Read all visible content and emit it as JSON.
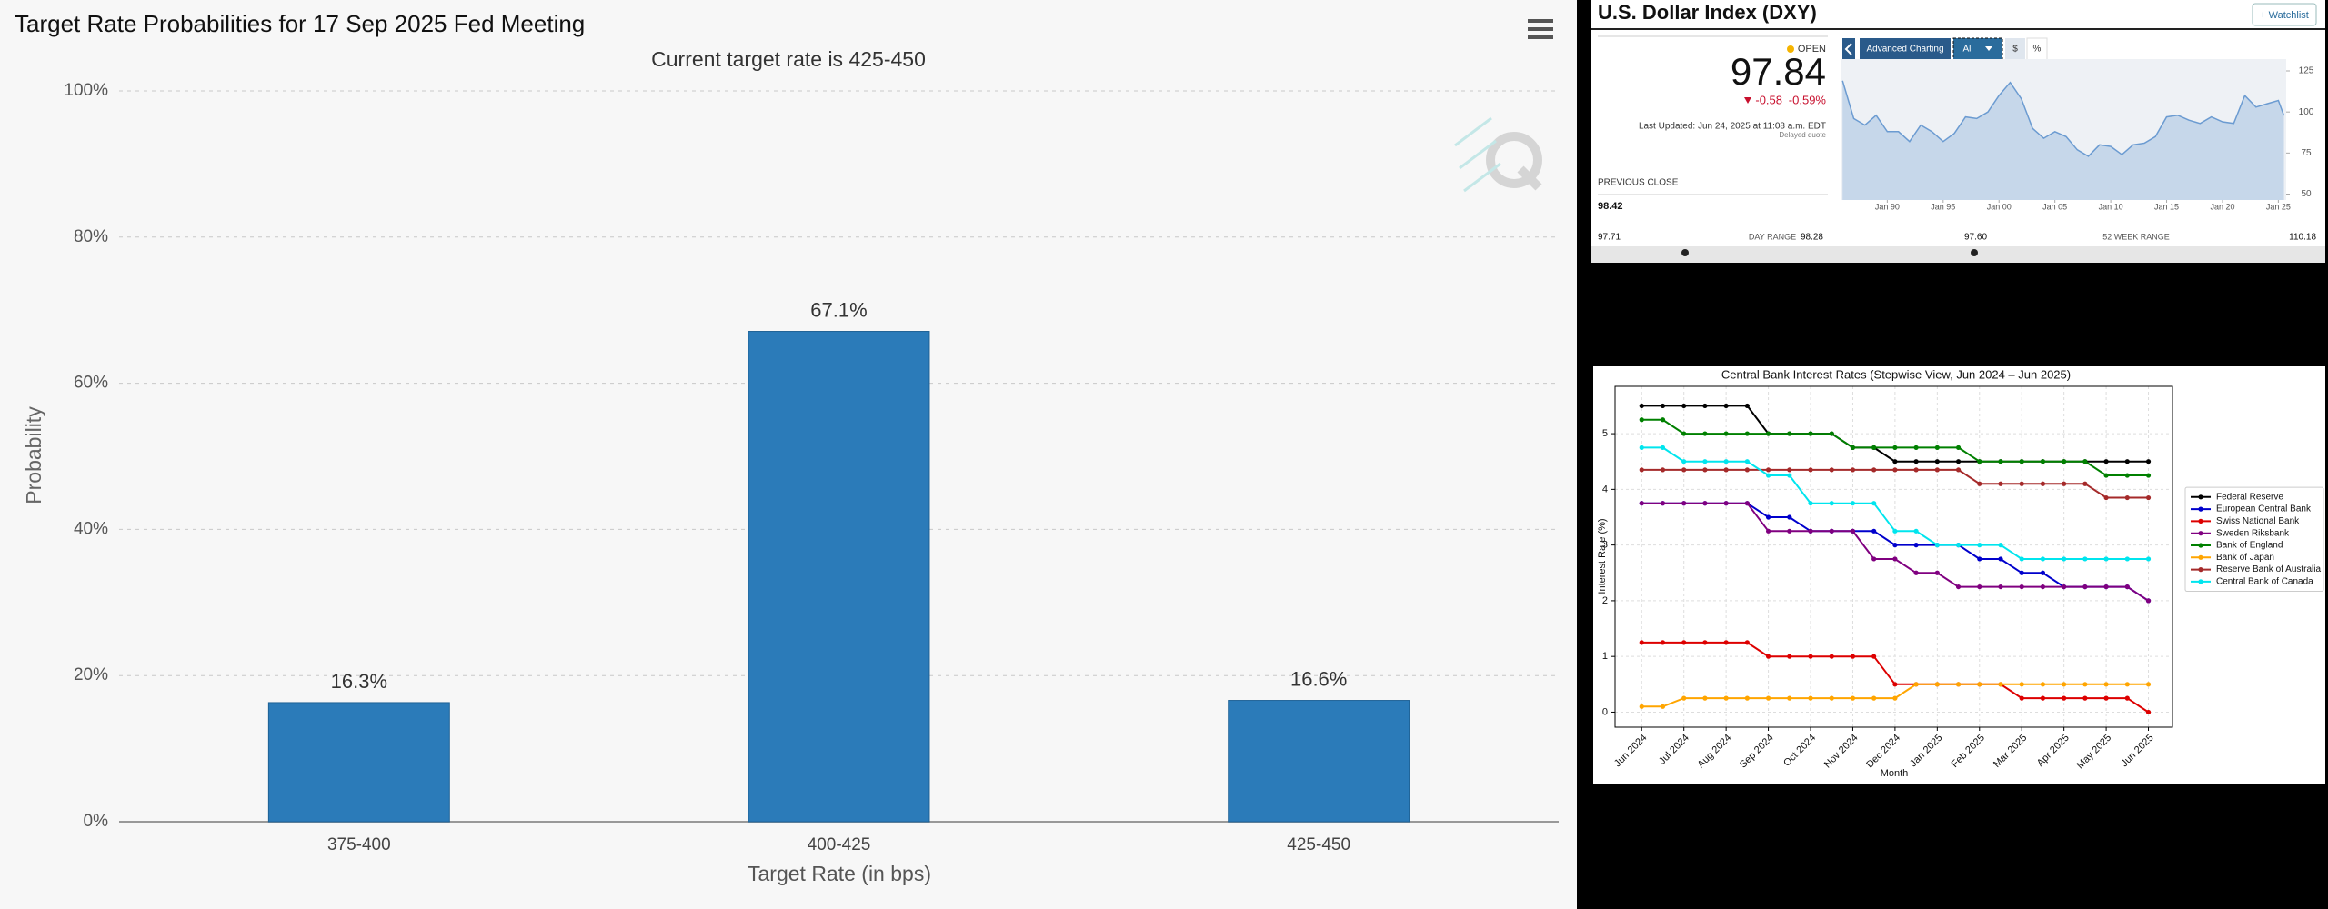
{
  "chart_data": [
    {
      "type": "bar",
      "title": "Target Rate Probabilities for 17 Sep 2025 Fed Meeting",
      "subtitle": "Current target rate is 425-450",
      "categories": [
        "375-400",
        "400-425",
        "425-450"
      ],
      "values": [
        16.3,
        67.1,
        16.6
      ],
      "value_labels": [
        "16.3%",
        "67.1%",
        "16.6%"
      ],
      "color": "#2b7bb9",
      "xlabel": "Target Rate (in bps)",
      "ylabel": "Probability",
      "ylim": [
        0,
        100
      ],
      "yticks": [
        {
          "value": 0,
          "label": "0%"
        },
        {
          "value": 20,
          "label": "20%"
        },
        {
          "value": 40,
          "label": "40%"
        },
        {
          "value": 60,
          "label": "60%"
        },
        {
          "value": 80,
          "label": "80%"
        },
        {
          "value": 100,
          "label": "100%"
        }
      ],
      "grid": true
    },
    {
      "type": "area",
      "color": "#6b9bd1",
      "x": [
        1986,
        1987,
        1988,
        1989,
        1990,
        1991,
        1992,
        1993,
        1994,
        1995,
        1996,
        1997,
        1998,
        1999,
        2000,
        2001,
        2002,
        2003,
        2004,
        2005,
        2006,
        2007,
        2008,
        2009,
        2010,
        2011,
        2012,
        2013,
        2014,
        2015,
        2016,
        2017,
        2018,
        2019,
        2020,
        2021,
        2022,
        2023,
        2024,
        2025,
        2025.5
      ],
      "values": [
        119,
        96,
        92,
        98,
        88,
        88,
        82,
        92,
        88,
        82,
        87,
        97,
        96,
        100,
        110,
        118,
        108,
        90,
        84,
        88,
        85,
        77,
        73,
        80,
        79,
        74,
        80,
        81,
        85,
        97,
        98,
        95,
        93,
        97,
        94,
        93,
        110,
        103,
        105,
        107,
        97.84
      ],
      "xlim": [
        1985.9,
        2025.7
      ],
      "xticks": [
        {
          "value": 1990,
          "label": "Jan 90"
        },
        {
          "value": 1995,
          "label": "Jan 95"
        },
        {
          "value": 2000,
          "label": "Jan 00"
        },
        {
          "value": 2005,
          "label": "Jan 05"
        },
        {
          "value": 2010,
          "label": "Jan 10"
        },
        {
          "value": 2015,
          "label": "Jan 15"
        },
        {
          "value": 2020,
          "label": "Jan 20"
        },
        {
          "value": 2025,
          "label": "Jan 25"
        }
      ],
      "ylim": [
        46.4,
        132.2
      ],
      "yticks": [
        125,
        100,
        75,
        50
      ]
    },
    {
      "type": "line",
      "title": "Central Bank Interest Rates (Stepwise View, Jun 2024 – Jun 2025)",
      "xlabel": "Month",
      "ylabel": "Interest Rate (%)",
      "x": [
        0,
        0.5,
        1,
        1.5,
        2,
        2.5,
        3,
        3.5,
        4,
        4.5,
        5,
        5.5,
        6,
        6.5,
        7,
        7.5,
        8,
        8.5,
        9,
        9.5,
        10,
        10.5,
        11,
        11.5,
        12
      ],
      "xlim": [
        -0.63,
        12.57
      ],
      "xticks": [
        {
          "value": 0,
          "label": "Jun 2024"
        },
        {
          "value": 1,
          "label": "Jul 2024"
        },
        {
          "value": 2,
          "label": "Aug 2024"
        },
        {
          "value": 3,
          "label": "Sep 2024"
        },
        {
          "value": 4,
          "label": "Oct 2024"
        },
        {
          "value": 5,
          "label": "Nov 2024"
        },
        {
          "value": 6,
          "label": "Dec 2024"
        },
        {
          "value": 7,
          "label": "Jan 2025"
        },
        {
          "value": 8,
          "label": "Feb 2025"
        },
        {
          "value": 9,
          "label": "Mar 2025"
        },
        {
          "value": 10,
          "label": "Apr 2025"
        },
        {
          "value": 11,
          "label": "May 2025"
        },
        {
          "value": 12,
          "label": "Jun 2025"
        }
      ],
      "ylim": [
        -0.27,
        5.85
      ],
      "yticks": [
        0,
        1,
        2,
        3,
        4,
        5
      ],
      "grid": true,
      "legend": "right",
      "series": [
        {
          "name": "Federal Reserve",
          "color": "#000000",
          "values": [
            5.5,
            5.5,
            5.5,
            5.5,
            5.5,
            5.5,
            5.0,
            5.0,
            5.0,
            5.0,
            4.75,
            4.75,
            4.5,
            4.5,
            4.5,
            4.5,
            4.5,
            4.5,
            4.5,
            4.5,
            4.5,
            4.5,
            4.5,
            4.5,
            4.5
          ]
        },
        {
          "name": "European Central Bank",
          "color": "#0000cc",
          "values": [
            3.75,
            3.75,
            3.75,
            3.75,
            3.75,
            3.75,
            3.5,
            3.5,
            3.25,
            3.25,
            3.25,
            3.25,
            3.0,
            3.0,
            3.0,
            3.0,
            2.75,
            2.75,
            2.5,
            2.5,
            2.25,
            2.25,
            2.25,
            2.25,
            2.0
          ]
        },
        {
          "name": "Swiss National Bank",
          "color": "#dd0000",
          "values": [
            1.25,
            1.25,
            1.25,
            1.25,
            1.25,
            1.25,
            1.0,
            1.0,
            1.0,
            1.0,
            1.0,
            1.0,
            0.5,
            0.5,
            0.5,
            0.5,
            0.5,
            0.5,
            0.25,
            0.25,
            0.25,
            0.25,
            0.25,
            0.25,
            0
          ]
        },
        {
          "name": "Sweden Riksbank",
          "color": "#800080",
          "values": [
            3.75,
            3.75,
            3.75,
            3.75,
            3.75,
            3.75,
            3.25,
            3.25,
            3.25,
            3.25,
            3.25,
            2.75,
            2.75,
            2.5,
            2.5,
            2.25,
            2.25,
            2.25,
            2.25,
            2.25,
            2.25,
            2.25,
            2.25,
            2.25,
            2.0
          ]
        },
        {
          "name": "Bank of England",
          "color": "#008000",
          "values": [
            5.25,
            5.25,
            5.0,
            5.0,
            5.0,
            5.0,
            5.0,
            5.0,
            5.0,
            5.0,
            4.75,
            4.75,
            4.75,
            4.75,
            4.75,
            4.75,
            4.5,
            4.5,
            4.5,
            4.5,
            4.5,
            4.5,
            4.25,
            4.25,
            4.25
          ]
        },
        {
          "name": "Bank of Japan",
          "color": "#ffa500",
          "values": [
            0.1,
            0.1,
            0.25,
            0.25,
            0.25,
            0.25,
            0.25,
            0.25,
            0.25,
            0.25,
            0.25,
            0.25,
            0.25,
            0.5,
            0.5,
            0.5,
            0.5,
            0.5,
            0.5,
            0.5,
            0.5,
            0.5,
            0.5,
            0.5,
            0.5
          ]
        },
        {
          "name": "Reserve Bank of Australia",
          "color": "#a52a2a",
          "values": [
            4.35,
            4.35,
            4.35,
            4.35,
            4.35,
            4.35,
            4.35,
            4.35,
            4.35,
            4.35,
            4.35,
            4.35,
            4.35,
            4.35,
            4.35,
            4.35,
            4.1,
            4.1,
            4.1,
            4.1,
            4.1,
            4.1,
            3.85,
            3.85,
            3.85
          ]
        },
        {
          "name": "Central Bank of Canada",
          "color": "#00e5ee",
          "values": [
            4.75,
            4.75,
            4.5,
            4.5,
            4.5,
            4.5,
            4.25,
            4.25,
            3.75,
            3.75,
            3.75,
            3.75,
            3.25,
            3.25,
            3.0,
            3.0,
            3.0,
            3.0,
            2.75,
            2.75,
            2.75,
            2.75,
            2.75,
            2.75,
            2.75
          ]
        }
      ]
    }
  ],
  "quote": {
    "title": "U.S. Dollar Index (DXY)",
    "watchlist": "+ Watchlist",
    "status": "OPEN",
    "price": "97.84",
    "change": "-0.58",
    "change_pct": "-0.59%",
    "updated": "Last Updated: Jun 24, 2025 at 11:08 a.m. EDT",
    "delayed": "Delayed quote",
    "previous_close_label": "PREVIOUS CLOSE",
    "previous_close": "98.42",
    "day_range": {
      "label": "DAY RANGE",
      "low": "97.71",
      "high": "98.28"
    },
    "week52_range": {
      "label": "52 WEEK RANGE",
      "low": "97.60",
      "high": "110.18"
    },
    "buttons": [
      "Advanced Charting",
      "All",
      "$",
      "%"
    ]
  }
}
